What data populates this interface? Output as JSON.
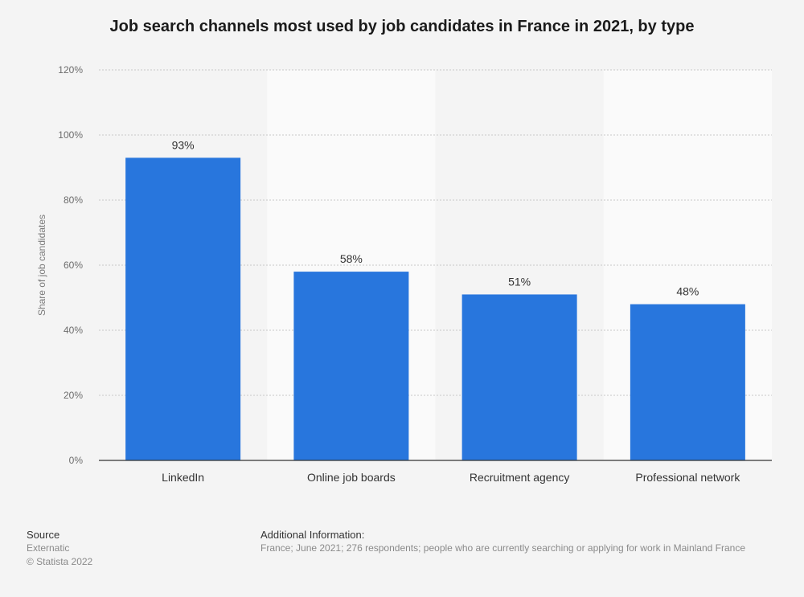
{
  "chart_data": {
    "type": "bar",
    "title": "Job search channels most used by job candidates in France in 2021, by type",
    "categories": [
      "LinkedIn",
      "Online job boards",
      "Recruitment agency",
      "Professional network"
    ],
    "values": [
      93,
      58,
      51,
      48
    ],
    "value_labels": [
      "93%",
      "58%",
      "51%",
      "48%"
    ],
    "ylabel": "Share of job candidates",
    "ylim": [
      0,
      120
    ],
    "yticks": [
      0,
      20,
      40,
      60,
      80,
      100,
      120
    ],
    "ytick_labels": [
      "0%",
      "20%",
      "40%",
      "60%",
      "80%",
      "100%",
      "120%"
    ],
    "grid": true,
    "bar_color": "#2876dd"
  },
  "footer": {
    "source_heading": "Source",
    "source_lines": [
      "Externatic",
      "© Statista 2022"
    ],
    "info_heading": "Additional Information:",
    "info_text": "France; June 2021; 276 respondents; people who are currently searching or applying for work in Mainland France"
  }
}
